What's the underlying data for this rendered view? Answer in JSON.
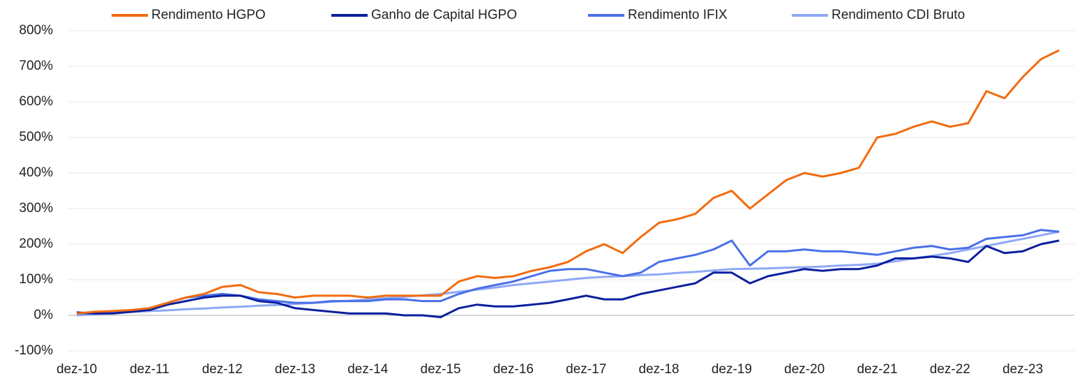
{
  "chart_data": {
    "type": "line",
    "categories": [
      "dez-10",
      null,
      null,
      null,
      "dez-11",
      null,
      null,
      null,
      "dez-12",
      null,
      null,
      null,
      "dez-13",
      null,
      null,
      null,
      "dez-14",
      null,
      null,
      null,
      "dez-15",
      null,
      null,
      null,
      "dez-16",
      null,
      null,
      null,
      "dez-17",
      null,
      null,
      null,
      "dez-18",
      null,
      null,
      null,
      "dez-19",
      null,
      null,
      null,
      "dez-20",
      null,
      null,
      null,
      "dez-21",
      null,
      null,
      null,
      "dez-22",
      null,
      null,
      null,
      "dez-23",
      null,
      null
    ],
    "series": [
      {
        "name": "Rendimento HGPO",
        "color": "#f26b0f",
        "values": [
          5,
          10,
          12,
          15,
          20,
          35,
          50,
          60,
          80,
          85,
          65,
          60,
          50,
          55,
          55,
          55,
          50,
          55,
          55,
          55,
          55,
          95,
          110,
          105,
          110,
          125,
          135,
          150,
          180,
          200,
          175,
          220,
          260,
          270,
          285,
          330,
          350,
          300,
          340,
          380,
          400,
          390,
          400,
          415,
          500,
          510,
          530,
          545,
          530,
          540,
          630,
          610,
          670,
          720,
          745
        ]
      },
      {
        "name": "Ganho de Capital HGPO",
        "color": "#0b1f9e",
        "values": [
          8,
          5,
          5,
          10,
          15,
          30,
          40,
          50,
          55,
          55,
          40,
          35,
          20,
          15,
          10,
          5,
          5,
          5,
          0,
          0,
          -5,
          20,
          30,
          25,
          25,
          30,
          35,
          45,
          55,
          45,
          45,
          60,
          70,
          80,
          90,
          120,
          120,
          90,
          110,
          120,
          130,
          125,
          130,
          130,
          140,
          160,
          160,
          165,
          160,
          150,
          195,
          175,
          180,
          200,
          210
        ]
      },
      {
        "name": "Rendimento IFIX",
        "color": "#4a70e8",
        "values": [
          5,
          5,
          8,
          10,
          20,
          35,
          50,
          55,
          60,
          55,
          45,
          40,
          35,
          35,
          40,
          40,
          40,
          45,
          45,
          40,
          40,
          60,
          75,
          85,
          95,
          110,
          125,
          130,
          130,
          120,
          110,
          120,
          150,
          160,
          170,
          185,
          210,
          140,
          180,
          180,
          185,
          180,
          180,
          175,
          170,
          180,
          190,
          195,
          185,
          190,
          215,
          220,
          225,
          240,
          235
        ]
      },
      {
        "name": "Rendimento CDI Bruto",
        "color": "#8fa8f5",
        "values": [
          0,
          3,
          6,
          9,
          12,
          14,
          17,
          19,
          22,
          24,
          27,
          29,
          32,
          35,
          38,
          41,
          45,
          48,
          52,
          56,
          60,
          66,
          72,
          78,
          85,
          90,
          95,
          100,
          105,
          108,
          110,
          113,
          115,
          119,
          122,
          126,
          130,
          131,
          132,
          134,
          135,
          137,
          140,
          142,
          145,
          152,
          160,
          167,
          175,
          185,
          195,
          205,
          215,
          225,
          235
        ]
      }
    ],
    "ylim": [
      -100,
      800
    ],
    "yticks": [
      {
        "value": -100,
        "label": "-100%"
      },
      {
        "value": 0,
        "label": "0%"
      },
      {
        "value": 100,
        "label": "100%"
      },
      {
        "value": 200,
        "label": "200%"
      },
      {
        "value": 300,
        "label": "300%"
      },
      {
        "value": 400,
        "label": "400%"
      },
      {
        "value": 500,
        "label": "500%"
      },
      {
        "value": 600,
        "label": "600%"
      },
      {
        "value": 700,
        "label": "700%"
      },
      {
        "value": 800,
        "label": "800%"
      }
    ],
    "grid": true,
    "legend": "top"
  }
}
